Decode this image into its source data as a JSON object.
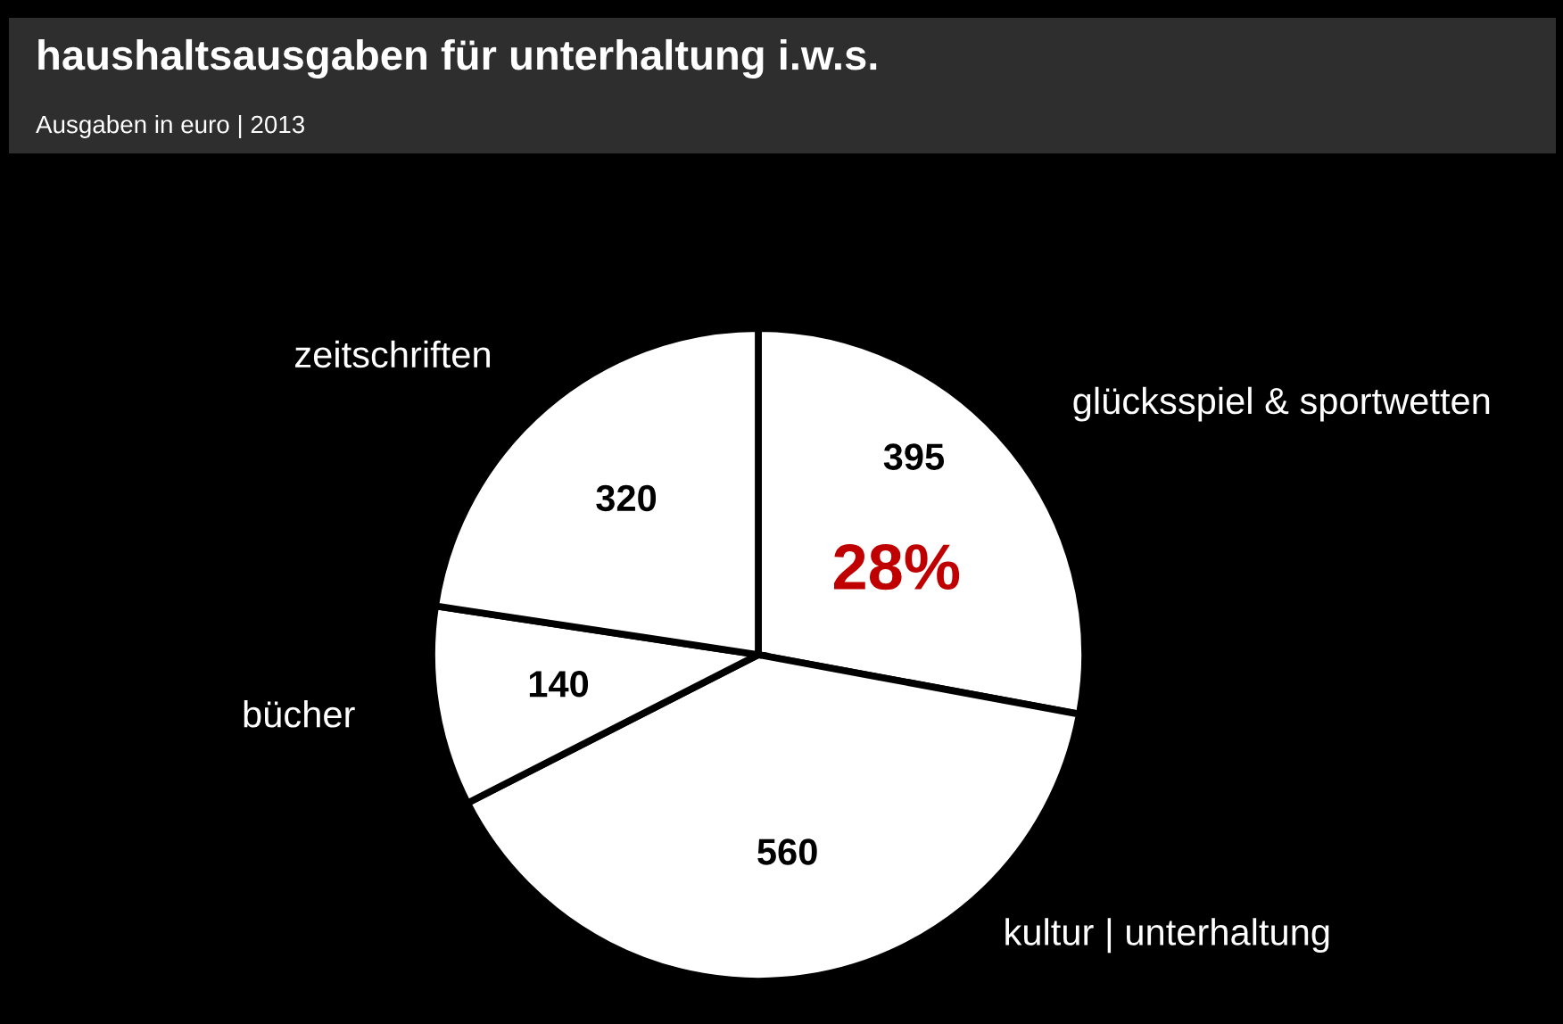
{
  "chart_data": {
    "type": "pie",
    "title": "haushaltsausgaben für unterhaltung i.w.s.",
    "subtitle": "Ausgaben in euro | 2013",
    "categories": [
      "glücksspiel & sportwetten",
      "kultur | unterhaltung",
      "bücher",
      "zeitschriften"
    ],
    "values": [
      395,
      560,
      140,
      320
    ],
    "colors": [
      "#ffffff",
      "#ffffff",
      "#ffffff",
      "#ffffff"
    ],
    "data_labels": true,
    "annotations": [
      "28%"
    ]
  }
}
